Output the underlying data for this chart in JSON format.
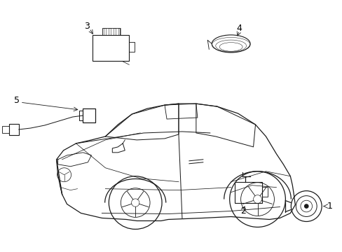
{
  "background_color": "#ffffff",
  "line_color": "#1a1a1a",
  "label_color": "#000000",
  "figsize": [
    4.89,
    3.6
  ],
  "dpi": 100,
  "border_color": "#dddddd",
  "label_fontsize": 9,
  "lw": 0.9
}
